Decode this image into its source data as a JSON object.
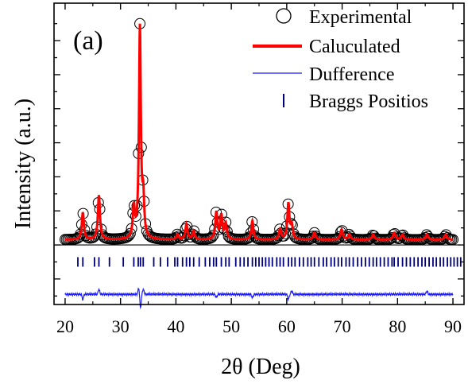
{
  "panel_label": "(a)",
  "colors": {
    "experimental": "#000000",
    "calculated": "#ff0000",
    "difference": "#1a1aff",
    "bragg": "#00007a",
    "axis": "#000000"
  },
  "chart_data": {
    "type": "line",
    "xlabel": "2θ (Deg)",
    "ylabel": "Intensity (a.u.)",
    "xlim": [
      18,
      92
    ],
    "ylim": [
      -0.35,
      1.42
    ],
    "x_ticks": [
      20,
      30,
      40,
      50,
      60,
      70,
      80,
      90
    ],
    "x_tick_labels": [
      "20",
      "30",
      "40",
      "50",
      "60",
      "70",
      "80",
      "90"
    ],
    "y_tick_labels_shown": false,
    "grid": false,
    "legend_position": "top-right",
    "legend": [
      {
        "label": "Experimental",
        "marker": "open-circle"
      },
      {
        "label": "Caluculated",
        "marker": "thick-line"
      },
      {
        "label": "Dufference",
        "marker": "thin-line"
      },
      {
        "label": "Braggs Positios",
        "marker": "vertical-tick"
      }
    ],
    "baseline": 0.03,
    "peaks": [
      {
        "x": 23.2,
        "height": 0.16,
        "width": 0.22
      },
      {
        "x": 26.1,
        "height": 0.26,
        "width": 0.22
      },
      {
        "x": 32.4,
        "height": 0.18,
        "width": 0.22
      },
      {
        "x": 33.5,
        "height": 1.24,
        "width": 0.2
      },
      {
        "x": 34.1,
        "height": 0.22,
        "width": 0.2
      },
      {
        "x": 40.3,
        "height": 0.03,
        "width": 0.22
      },
      {
        "x": 41.9,
        "height": 0.09,
        "width": 0.22
      },
      {
        "x": 43.2,
        "height": 0.05,
        "width": 0.22
      },
      {
        "x": 47.3,
        "height": 0.16,
        "width": 0.22
      },
      {
        "x": 48.2,
        "height": 0.14,
        "width": 0.22
      },
      {
        "x": 49.0,
        "height": 0.09,
        "width": 0.22
      },
      {
        "x": 53.8,
        "height": 0.11,
        "width": 0.22
      },
      {
        "x": 58.8,
        "height": 0.06,
        "width": 0.22
      },
      {
        "x": 60.3,
        "height": 0.21,
        "width": 0.22
      },
      {
        "x": 60.9,
        "height": 0.08,
        "width": 0.22
      },
      {
        "x": 65.0,
        "height": 0.04,
        "width": 0.25
      },
      {
        "x": 69.9,
        "height": 0.06,
        "width": 0.25
      },
      {
        "x": 71.3,
        "height": 0.03,
        "width": 0.25
      },
      {
        "x": 75.6,
        "height": 0.03,
        "width": 0.25
      },
      {
        "x": 79.4,
        "height": 0.04,
        "width": 0.25
      },
      {
        "x": 80.9,
        "height": 0.03,
        "width": 0.25
      },
      {
        "x": 85.3,
        "height": 0.03,
        "width": 0.25
      },
      {
        "x": 88.7,
        "height": 0.03,
        "width": 0.25
      }
    ],
    "difference_baseline": -0.29,
    "difference_spikes": [
      {
        "x": 23.2,
        "dy": -0.03
      },
      {
        "x": 26.1,
        "dy": 0.03
      },
      {
        "x": 33.3,
        "dy": 0.04
      },
      {
        "x": 33.6,
        "dy": -0.08
      },
      {
        "x": 34.1,
        "dy": 0.03
      },
      {
        "x": 47.3,
        "dy": -0.02
      },
      {
        "x": 53.8,
        "dy": -0.02
      },
      {
        "x": 60.3,
        "dy": -0.03
      },
      {
        "x": 60.9,
        "dy": 0.02
      },
      {
        "x": 85.3,
        "dy": 0.02
      }
    ],
    "bragg_row_y": -0.1,
    "bragg_positions": [
      22.3,
      23.2,
      25.3,
      26.1,
      28.0,
      30.5,
      32.4,
      33.2,
      33.6,
      34.1,
      36.0,
      37.2,
      38.5,
      39.8,
      40.3,
      41.2,
      41.9,
      42.5,
      43.2,
      44.2,
      45.3,
      46.1,
      46.8,
      47.3,
      48.2,
      49.0,
      49.6,
      50.8,
      51.6,
      52.3,
      53.0,
      53.8,
      54.4,
      55.0,
      55.6,
      56.2,
      56.8,
      57.4,
      58.2,
      58.8,
      59.4,
      60.3,
      60.9,
      61.5,
      62.3,
      63.0,
      63.8,
      64.4,
      65.0,
      65.8,
      66.6,
      67.2,
      68.0,
      68.6,
      69.3,
      69.9,
      70.7,
      71.3,
      72.0,
      72.8,
      73.5,
      74.2,
      74.9,
      75.6,
      76.2,
      76.9,
      77.6,
      78.3,
      79.0,
      79.4,
      80.1,
      80.9,
      81.6,
      82.3,
      83.0,
      83.7,
      84.4,
      85.0,
      85.7,
      86.4,
      87.0,
      87.7,
      88.3,
      89.0,
      89.6,
      90.2,
      90.8,
      91.4
    ]
  }
}
